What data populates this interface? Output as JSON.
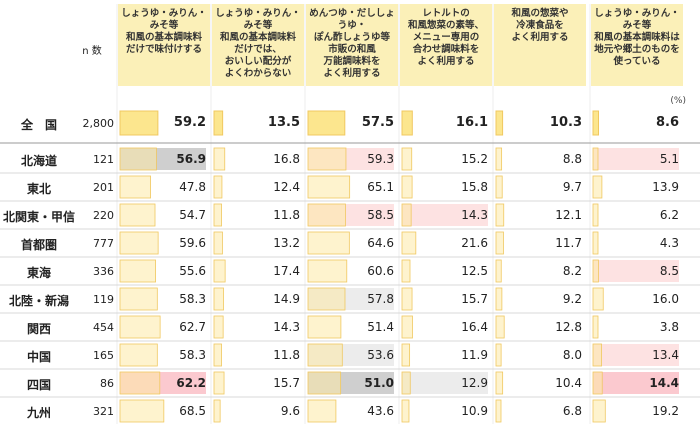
{
  "chart_data": {
    "type": "table",
    "n_label": "n 数",
    "unit": "(%)",
    "columns": [
      "しょうゆ・みりん・\nみそ等\n和風の基本調味料\nだけで味付けする",
      "しょうゆ・みりん・\nみそ等\n和風の基本調味料\nだけでは、\nおいしい配分が\nよくわからない",
      "めんつゆ・だししょうゆ・\nぽん酢しょうゆ等\n市販の和風\n万能調味料を\nよく利用する",
      "レトルトの\n和風惣菜の素等、\nメニュー専用の\n合わせ調味料を\nよく利用する",
      "和風の惣菜や\n冷凍食品を\nよく利用する",
      "しょうゆ・みりん・\nみそ等\n和風の基本調味料は\n地元や郷土のものを\n使っている"
    ],
    "total": {
      "name": "全　国",
      "n": "2,800",
      "values": [
        59.2,
        13.5,
        57.5,
        16.1,
        10.3,
        8.6
      ]
    },
    "rows": [
      {
        "name": "北海道",
        "n": "121",
        "values": [
          56.9,
          16.8,
          59.3,
          15.2,
          8.8,
          5.1
        ]
      },
      {
        "name": "東北",
        "n": "201",
        "values": [
          47.8,
          12.4,
          65.1,
          15.8,
          9.7,
          13.9
        ]
      },
      {
        "name": "北関東・甲信",
        "n": "220",
        "values": [
          54.7,
          11.8,
          58.5,
          14.3,
          12.1,
          6.2
        ]
      },
      {
        "name": "首都圏",
        "n": "777",
        "values": [
          59.6,
          13.2,
          64.6,
          21.6,
          11.7,
          4.3
        ]
      },
      {
        "name": "東海",
        "n": "336",
        "values": [
          55.6,
          17.4,
          60.6,
          12.5,
          8.2,
          8.5
        ]
      },
      {
        "name": "北陸・新潟",
        "n": "119",
        "values": [
          58.3,
          14.9,
          57.8,
          15.7,
          9.2,
          16.0
        ]
      },
      {
        "name": "関西",
        "n": "454",
        "values": [
          62.7,
          14.3,
          51.4,
          16.4,
          12.8,
          3.8
        ]
      },
      {
        "name": "中国",
        "n": "165",
        "values": [
          58.3,
          11.8,
          53.6,
          11.9,
          8.0,
          13.4
        ]
      },
      {
        "name": "四国",
        "n": "86",
        "values": [
          62.2,
          15.7,
          51.0,
          12.9,
          10.4,
          14.4
        ]
      },
      {
        "name": "九州",
        "n": "321",
        "values": [
          68.5,
          9.6,
          43.6,
          10.9,
          6.8,
          19.2
        ]
      }
    ],
    "highlights": {
      "high_strong": [
        [
          9,
          0
        ],
        [
          9,
          5
        ]
      ],
      "high": [
        [
          1,
          2
        ],
        [
          3,
          2
        ],
        [
          3,
          3
        ],
        [
          1,
          5
        ],
        [
          5,
          5
        ],
        [
          8,
          5
        ]
      ],
      "low_strong": [
        [
          1,
          0
        ],
        [
          9,
          2
        ]
      ],
      "low": [
        [
          6,
          2
        ],
        [
          8,
          2
        ],
        [
          9,
          3
        ]
      ]
    },
    "colors": {
      "header_bg": "#fbf0b8",
      "bar_fill": "#fde9a6",
      "bar_border": "#f0c860",
      "total_bar_fill": "#fce68e",
      "high": "#fde2e2",
      "high_strong": "#fbc9cf",
      "low": "#ececec",
      "low_strong": "#cfcfcf",
      "row_rule": "#d8d8d8",
      "col_rule": "#eeeeee"
    }
  }
}
